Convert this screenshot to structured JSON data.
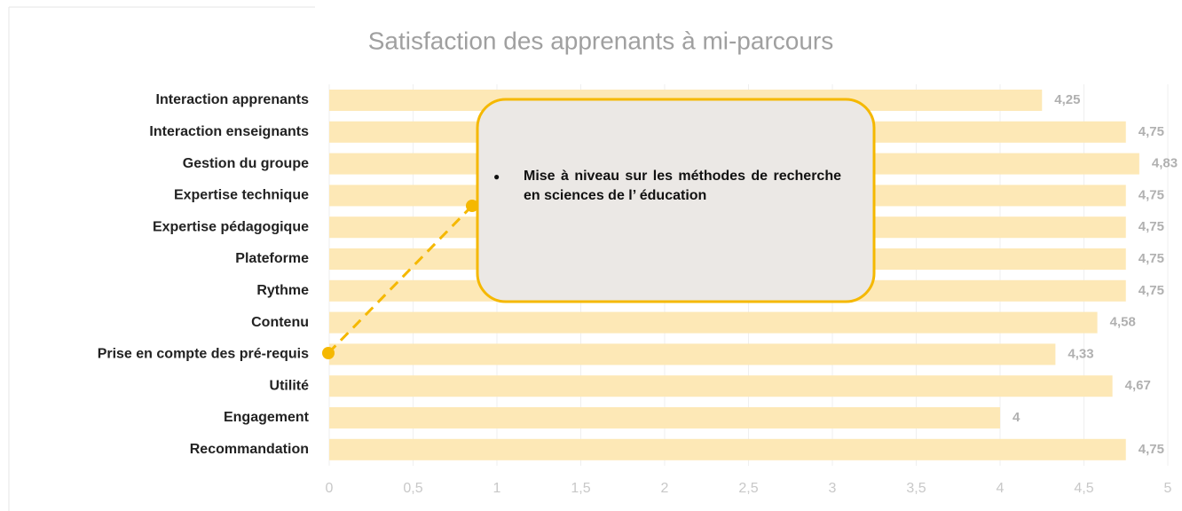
{
  "chart_data": {
    "type": "bar",
    "orientation": "horizontal",
    "title": "Satisfaction des apprenants à mi-parcours",
    "categories": [
      "Interaction apprenants",
      "Interaction enseignants",
      "Gestion du groupe",
      "Expertise technique",
      "Expertise pédagogique",
      "Plateforme",
      "Rythme",
      "Contenu",
      "Prise en compte des pré-requis",
      "Utilité",
      "Engagement",
      "Recommandation"
    ],
    "values": [
      4.25,
      4.75,
      4.83,
      4.75,
      4.75,
      4.75,
      4.75,
      4.58,
      4.33,
      4.67,
      4,
      4.75
    ],
    "value_labels": [
      "4,25",
      "4,75",
      "4,83",
      "4,75",
      "4,75",
      "4,75",
      "4,75",
      "4,58",
      "4,33",
      "4,67",
      "4",
      "4,75"
    ],
    "color": "#fde8b6",
    "xlim": [
      0,
      5
    ],
    "xticks": [
      0,
      {
        "value": 0.5,
        "label": "0,5"
      },
      1,
      {
        "value": 1.5,
        "label": "1,5"
      },
      2,
      {
        "value": 2.5,
        "label": "2,5"
      },
      3,
      {
        "value": 3.5,
        "label": "3,5"
      },
      4,
      {
        "value": 4.5,
        "label": "4,5"
      },
      5
    ],
    "grid": true,
    "annotation": "Mise à niveau sur les méthodes de recherche en sciences de l’ éducation"
  }
}
